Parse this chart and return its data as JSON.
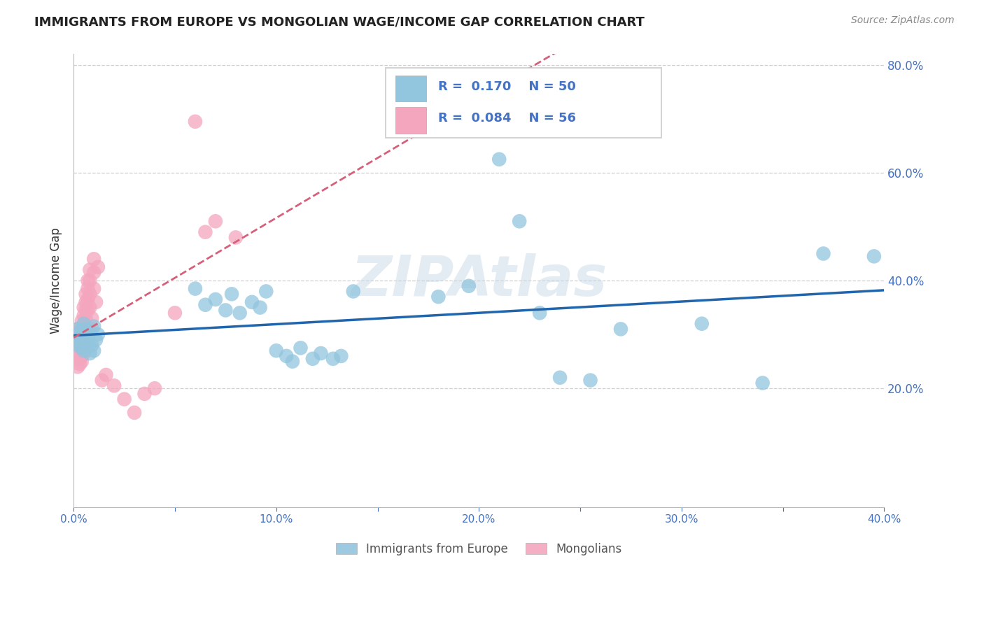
{
  "title": "IMMIGRANTS FROM EUROPE VS MONGOLIAN WAGE/INCOME GAP CORRELATION CHART",
  "source": "Source: ZipAtlas.com",
  "ylabel": "Wage/Income Gap",
  "watermark": "ZIPAtlas",
  "xlim": [
    0.0,
    0.4
  ],
  "ylim": [
    0.0,
    0.8
  ],
  "xtick_labels": [
    "0.0%",
    "",
    "10.0%",
    "",
    "20.0%",
    "",
    "30.0%",
    "",
    "40.0%"
  ],
  "xtick_vals": [
    0.0,
    0.05,
    0.1,
    0.15,
    0.2,
    0.25,
    0.3,
    0.35,
    0.4
  ],
  "ytick_labels": [
    "20.0%",
    "40.0%",
    "60.0%",
    "80.0%"
  ],
  "ytick_vals": [
    0.2,
    0.4,
    0.6,
    0.8
  ],
  "blue_color": "#92c5de",
  "pink_color": "#f4a6be",
  "blue_line_color": "#2166ac",
  "pink_line_color": "#d6607a",
  "legend_R_blue": "0.170",
  "legend_N_blue": "50",
  "legend_R_pink": "0.084",
  "legend_N_pink": "56",
  "legend_label_blue": "Immigrants from Europe",
  "legend_label_pink": "Mongolians",
  "blue_scatter_x": [
    0.001,
    0.002,
    0.002,
    0.003,
    0.003,
    0.004,
    0.004,
    0.005,
    0.005,
    0.006,
    0.006,
    0.007,
    0.007,
    0.008,
    0.008,
    0.009,
    0.01,
    0.01,
    0.011,
    0.012,
    0.06,
    0.065,
    0.07,
    0.075,
    0.078,
    0.082,
    0.088,
    0.092,
    0.095,
    0.1,
    0.105,
    0.108,
    0.112,
    0.118,
    0.122,
    0.128,
    0.132,
    0.138,
    0.18,
    0.195,
    0.21,
    0.22,
    0.23,
    0.24,
    0.255,
    0.27,
    0.31,
    0.34,
    0.37,
    0.395
  ],
  "blue_scatter_y": [
    0.295,
    0.31,
    0.28,
    0.285,
    0.305,
    0.275,
    0.3,
    0.32,
    0.27,
    0.29,
    0.31,
    0.285,
    0.295,
    0.265,
    0.305,
    0.28,
    0.315,
    0.27,
    0.29,
    0.3,
    0.385,
    0.355,
    0.365,
    0.345,
    0.375,
    0.34,
    0.36,
    0.35,
    0.38,
    0.27,
    0.26,
    0.25,
    0.275,
    0.255,
    0.265,
    0.255,
    0.26,
    0.38,
    0.37,
    0.39,
    0.625,
    0.51,
    0.34,
    0.22,
    0.215,
    0.31,
    0.32,
    0.21,
    0.45,
    0.445
  ],
  "pink_scatter_x": [
    0.001,
    0.001,
    0.001,
    0.002,
    0.002,
    0.002,
    0.002,
    0.002,
    0.003,
    0.003,
    0.003,
    0.003,
    0.003,
    0.004,
    0.004,
    0.004,
    0.004,
    0.004,
    0.004,
    0.005,
    0.005,
    0.005,
    0.005,
    0.005,
    0.005,
    0.006,
    0.006,
    0.006,
    0.006,
    0.007,
    0.007,
    0.007,
    0.007,
    0.008,
    0.008,
    0.008,
    0.008,
    0.009,
    0.009,
    0.01,
    0.01,
    0.01,
    0.011,
    0.012,
    0.014,
    0.016,
    0.02,
    0.025,
    0.03,
    0.035,
    0.04,
    0.05,
    0.06,
    0.065,
    0.07,
    0.08
  ],
  "pink_scatter_y": [
    0.295,
    0.275,
    0.26,
    0.31,
    0.285,
    0.265,
    0.255,
    0.24,
    0.305,
    0.29,
    0.27,
    0.255,
    0.245,
    0.325,
    0.31,
    0.295,
    0.275,
    0.26,
    0.25,
    0.35,
    0.335,
    0.315,
    0.3,
    0.28,
    0.265,
    0.375,
    0.36,
    0.345,
    0.33,
    0.4,
    0.385,
    0.365,
    0.345,
    0.42,
    0.4,
    0.375,
    0.35,
    0.33,
    0.31,
    0.44,
    0.415,
    0.385,
    0.36,
    0.425,
    0.215,
    0.225,
    0.205,
    0.18,
    0.155,
    0.19,
    0.2,
    0.34,
    0.695,
    0.49,
    0.51,
    0.48
  ],
  "background_color": "#ffffff",
  "grid_color": "#d0d0d0",
  "title_color": "#222222",
  "axis_color": "#4472c4"
}
